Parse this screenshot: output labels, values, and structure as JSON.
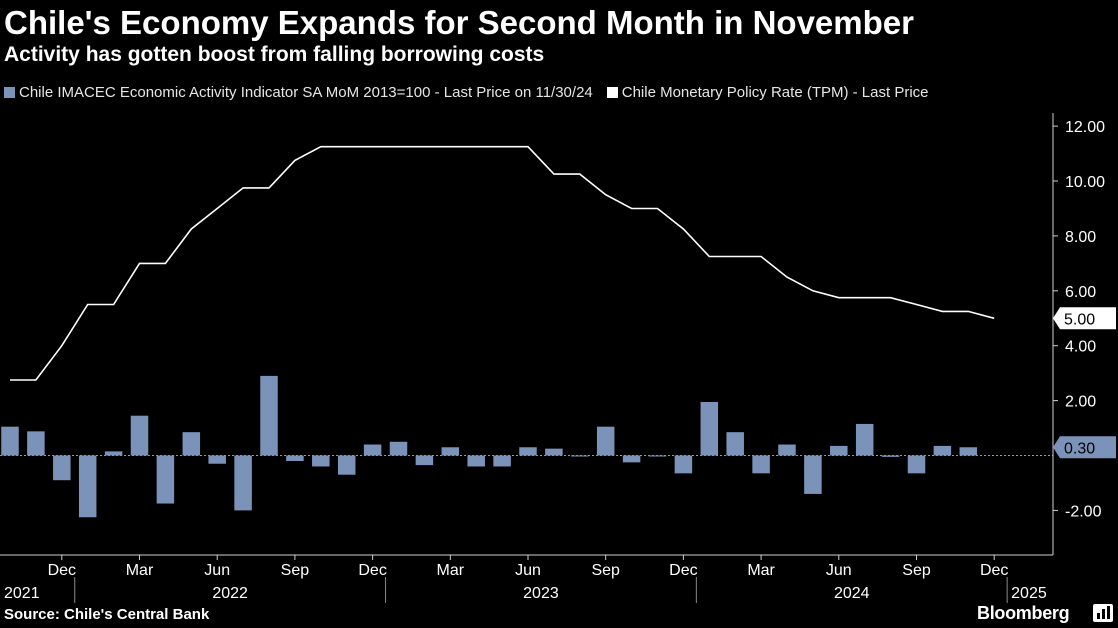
{
  "header": {
    "title": "Chile's Economy Expands for Second Month in November",
    "subtitle": "Activity has gotten boost from falling borrowing costs"
  },
  "footer": {
    "source": "Source: Chile's Central Bank",
    "brand": "Bloomberg"
  },
  "icons": {
    "brand": "bloomberg-chart-icon"
  },
  "chart_data": {
    "type": "bar+line",
    "title": "Chile's Economy Expands for Second Month in November",
    "subtitle": "Activity has gotten boost from falling borrowing costs",
    "legend_position": "top-left",
    "grid": false,
    "y_axis_side": "right",
    "ylim": [
      -3.7,
      12.6
    ],
    "yticks": [
      "12.00",
      "10.00",
      "8.00",
      "6.00",
      "4.00",
      "2.00",
      "-2.00"
    ],
    "x_month_labels": [
      "Dec",
      "Mar",
      "Jun",
      "Sep",
      "Dec",
      "Mar",
      "Jun",
      "Sep",
      "Dec",
      "Mar",
      "Jun",
      "Sep",
      "Dec"
    ],
    "x_year_labels": [
      "2021",
      "2022",
      "2023",
      "2024",
      "2025"
    ],
    "x": [
      "2021-10",
      "2021-11",
      "2021-12",
      "2022-01",
      "2022-02",
      "2022-03",
      "2022-04",
      "2022-05",
      "2022-06",
      "2022-07",
      "2022-08",
      "2022-09",
      "2022-10",
      "2022-11",
      "2022-12",
      "2023-01",
      "2023-02",
      "2023-03",
      "2023-04",
      "2023-05",
      "2023-06",
      "2023-07",
      "2023-08",
      "2023-09",
      "2023-10",
      "2023-11",
      "2023-12",
      "2024-01",
      "2024-02",
      "2024-03",
      "2024-04",
      "2024-05",
      "2024-06",
      "2024-07",
      "2024-08",
      "2024-09",
      "2024-10",
      "2024-11",
      "2024-12"
    ],
    "series": [
      {
        "name": "Chile IMACEC Economic Activity Indicator SA MoM 2013=100 - Last Price on 11/30/24",
        "type": "bar",
        "color": "#7b93b8",
        "last_value_label": "0.30",
        "values": [
          1.05,
          0.88,
          -0.9,
          -2.25,
          0.15,
          1.45,
          -1.75,
          0.85,
          -0.3,
          -2.0,
          2.9,
          -0.2,
          -0.4,
          -0.7,
          0.4,
          0.5,
          -0.35,
          0.3,
          -0.4,
          -0.4,
          0.3,
          0.25,
          0.0,
          1.05,
          -0.25,
          0.0,
          -0.65,
          1.95,
          0.85,
          -0.65,
          0.4,
          -1.4,
          0.35,
          1.15,
          -0.05,
          -0.65,
          0.35,
          0.3,
          null
        ]
      },
      {
        "name": "Chile Monetary Policy Rate (TPM) - Last Price",
        "type": "line",
        "color": "#ffffff",
        "last_value_label": "5.00",
        "values": [
          2.75,
          2.75,
          4.0,
          5.5,
          5.5,
          7.0,
          7.0,
          8.25,
          9.0,
          9.75,
          9.75,
          10.75,
          11.25,
          11.25,
          11.25,
          11.25,
          11.25,
          11.25,
          11.25,
          11.25,
          11.25,
          10.25,
          10.25,
          9.5,
          9.0,
          9.0,
          8.25,
          7.25,
          7.25,
          7.25,
          6.5,
          6.0,
          5.75,
          5.75,
          5.75,
          5.5,
          5.25,
          5.25,
          5.0
        ]
      }
    ]
  }
}
